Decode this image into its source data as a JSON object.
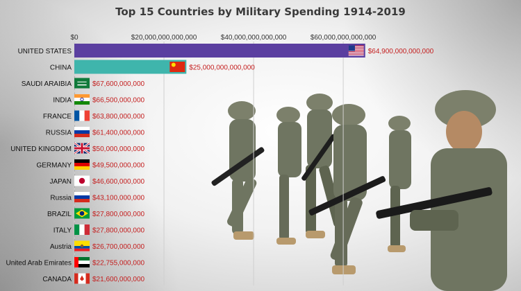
{
  "chart_data": {
    "type": "bar",
    "orientation": "horizontal",
    "title": "Top 15 Countries by Military Spending 1914-2019",
    "xlabel": "",
    "ylabel": "",
    "xlim": [
      0,
      82000000000000
    ],
    "ticks": [
      {
        "value": 0,
        "label": "$0"
      },
      {
        "value": 20000000000000,
        "label": "$20,000,000,000,000"
      },
      {
        "value": 40000000000000,
        "label": "$40,000,000,000,000"
      },
      {
        "value": 60000000000000,
        "label": "$60,000,000,000,000"
      }
    ],
    "grid": true,
    "categories": [
      "UNITED STATES",
      "CHINA",
      "SAUDI ARAIBIA",
      "INDIA",
      "FRANCE",
      "RUSSIA",
      "UNITED KINGDOM",
      "GERMANY",
      "JAPAN",
      "Russia",
      "BRAZIL",
      "ITALY",
      "Austria",
      "United Arab Emirates",
      "CANADA"
    ],
    "values": [
      64900000000000,
      25000000000000,
      67600000000,
      66500000000,
      63800000000,
      61400000000,
      50000000000,
      49500000000,
      46600000000,
      43100000000,
      27800000000,
      27800000000,
      26700000000,
      22755000000,
      21600000000
    ],
    "value_labels": [
      "$64,900,000,000,000",
      "$25,000,000,000,000",
      "$67,600,000,000",
      "$66,500,000,000",
      "$63,800,000,000",
      "$61,400,000,000",
      "$50,000,000,000",
      "$49,500,000,000",
      "$46,600,000,000",
      "$43,100,000,000",
      "$27,800,000,000",
      "$27,800,000,000",
      "$26,700,000,000",
      "$22,755,000,000",
      "$21,600,000,000"
    ],
    "flags": [
      "us-flag-icon",
      "china-flag-icon",
      "saudi-arabia-flag-icon",
      "india-flag-icon",
      "france-flag-icon",
      "russia-flag-icon",
      "uk-flag-icon",
      "germany-flag-icon",
      "japan-flag-icon",
      "russia-flag-icon",
      "brazil-flag-icon",
      "italy-flag-icon",
      "ecuador-flag-icon",
      "uae-flag-icon",
      "canada-flag-icon"
    ],
    "colors": {
      "bar_us": "#5b3fa0",
      "bar_china": "#3fb5ac",
      "value_label": "#c41e1e",
      "grid": "#cfcfcf"
    }
  }
}
